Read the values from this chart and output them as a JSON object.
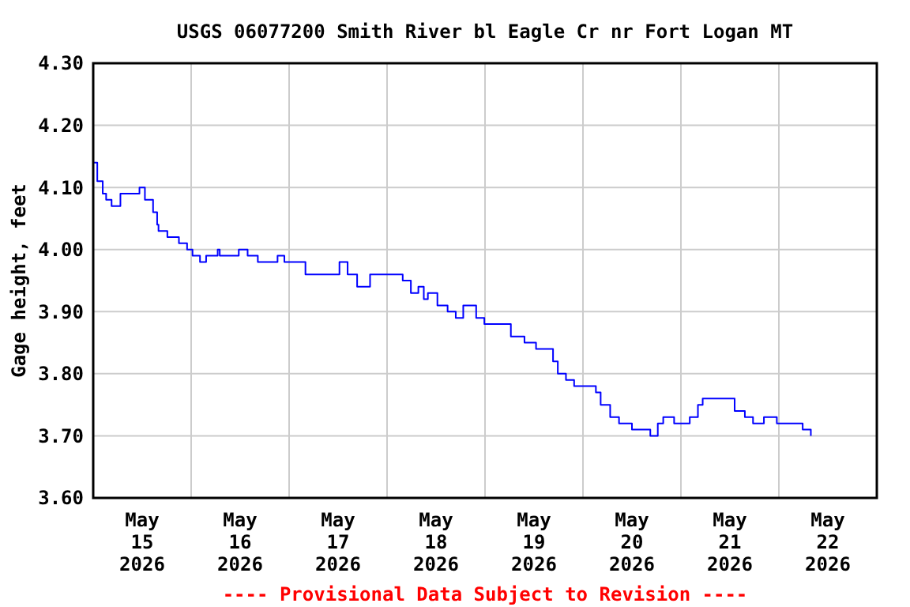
{
  "chart_data": {
    "type": "step",
    "title": "USGS 06077200 Smith River bl Eagle Cr nr Fort Logan MT",
    "ylabel": "Gage height, feet",
    "annotations": [
      "---- Provisional Data Subject to Revision ----"
    ],
    "xlim": [
      "2026-05-15T00:00",
      "2026-05-23T00:00"
    ],
    "xticks": [
      {
        "value": "2026-05-15T12:00",
        "label": "May 15 2026"
      },
      {
        "value": "2026-05-16T00:00",
        "label": null
      },
      {
        "value": "2026-05-16T12:00",
        "label": "May 16 2026"
      },
      {
        "value": "2026-05-17T00:00",
        "label": null
      },
      {
        "value": "2026-05-17T12:00",
        "label": "May 17 2026"
      },
      {
        "value": "2026-05-18T00:00",
        "label": null
      },
      {
        "value": "2026-05-18T12:00",
        "label": "May 18 2026"
      },
      {
        "value": "2026-05-19T00:00",
        "label": null
      },
      {
        "value": "2026-05-19T12:00",
        "label": "May 19 2026"
      },
      {
        "value": "2026-05-20T00:00",
        "label": null
      },
      {
        "value": "2026-05-20T12:00",
        "label": "May 20 2026"
      },
      {
        "value": "2026-05-21T00:00",
        "label": null
      },
      {
        "value": "2026-05-21T12:00",
        "label": "May 21 2026"
      },
      {
        "value": "2026-05-22T00:00",
        "label": null
      },
      {
        "value": "2026-05-22T12:00",
        "label": "May 22 2026"
      }
    ],
    "ylim": [
      3.6,
      4.3
    ],
    "yticks": [
      {
        "value": 3.6,
        "label": "3.60"
      },
      {
        "value": 3.7,
        "label": "3.70"
      },
      {
        "value": 3.8,
        "label": "3.80"
      },
      {
        "value": 3.9,
        "label": "3.90"
      },
      {
        "value": 4.0,
        "label": "4.00"
      },
      {
        "value": 4.1,
        "label": "4.10"
      },
      {
        "value": 4.2,
        "label": "4.20"
      },
      {
        "value": 4.3,
        "label": "4.30"
      }
    ],
    "grid": true,
    "x": [
      "2026-05-15T00:00",
      "2026-05-15T01:00",
      "2026-05-15T02:20",
      "2026-05-15T03:10",
      "2026-05-15T04:30",
      "2026-05-15T06:40",
      "2026-05-15T09:00",
      "2026-05-15T11:20",
      "2026-05-15T12:40",
      "2026-05-15T14:40",
      "2026-05-15T15:40",
      "2026-05-15T16:00",
      "2026-05-15T18:10",
      "2026-05-15T21:00",
      "2026-05-15T23:00",
      "2026-05-16T00:20",
      "2026-05-16T02:10",
      "2026-05-16T03:40",
      "2026-05-16T06:30",
      "2026-05-16T07:00",
      "2026-05-16T11:40",
      "2026-05-16T13:50",
      "2026-05-16T16:20",
      "2026-05-16T21:10",
      "2026-05-16T22:50",
      "2026-05-17T04:00",
      "2026-05-17T10:00",
      "2026-05-17T12:20",
      "2026-05-17T14:20",
      "2026-05-17T16:40",
      "2026-05-17T18:00",
      "2026-05-17T19:50",
      "2026-05-17T23:20",
      "2026-05-18T03:50",
      "2026-05-18T05:50",
      "2026-05-18T07:40",
      "2026-05-18T09:00",
      "2026-05-18T10:00",
      "2026-05-18T12:20",
      "2026-05-18T14:50",
      "2026-05-18T16:50",
      "2026-05-18T18:40",
      "2026-05-18T21:50",
      "2026-05-18T23:50",
      "2026-05-19T03:40",
      "2026-05-19T06:20",
      "2026-05-19T09:40",
      "2026-05-19T12:30",
      "2026-05-19T15:40",
      "2026-05-19T16:40",
      "2026-05-19T17:50",
      "2026-05-19T19:50",
      "2026-05-19T21:50",
      "2026-05-20T01:00",
      "2026-05-20T03:10",
      "2026-05-20T04:20",
      "2026-05-20T06:40",
      "2026-05-20T08:50",
      "2026-05-20T12:00",
      "2026-05-20T16:30",
      "2026-05-20T18:20",
      "2026-05-20T19:40",
      "2026-05-20T22:20",
      "2026-05-21T01:10",
      "2026-05-21T02:10",
      "2026-05-21T04:10",
      "2026-05-21T05:20",
      "2026-05-21T11:50",
      "2026-05-21T13:10",
      "2026-05-21T15:40",
      "2026-05-21T17:40",
      "2026-05-21T20:20",
      "2026-05-21T23:30",
      "2026-05-22T03:00",
      "2026-05-22T05:50",
      "2026-05-22T07:30",
      "2026-05-22T07:50"
    ],
    "series": [
      {
        "color": "#0000ff",
        "values": [
          4.14,
          4.11,
          4.09,
          4.08,
          4.07,
          4.09,
          4.09,
          4.1,
          4.08,
          4.06,
          4.04,
          4.03,
          4.02,
          4.01,
          4.0,
          3.99,
          3.98,
          3.99,
          4.0,
          3.99,
          4.0,
          3.99,
          3.98,
          3.99,
          3.98,
          3.96,
          3.96,
          3.98,
          3.96,
          3.94,
          3.94,
          3.96,
          3.96,
          3.95,
          3.93,
          3.94,
          3.92,
          3.93,
          3.91,
          3.9,
          3.89,
          3.91,
          3.89,
          3.88,
          3.88,
          3.86,
          3.85,
          3.84,
          3.84,
          3.82,
          3.8,
          3.79,
          3.78,
          3.78,
          3.77,
          3.75,
          3.73,
          3.72,
          3.71,
          3.7,
          3.72,
          3.73,
          3.72,
          3.72,
          3.73,
          3.75,
          3.76,
          3.76,
          3.74,
          3.73,
          3.72,
          3.73,
          3.72,
          3.72,
          3.71,
          3.71,
          3.7
        ]
      }
    ]
  }
}
